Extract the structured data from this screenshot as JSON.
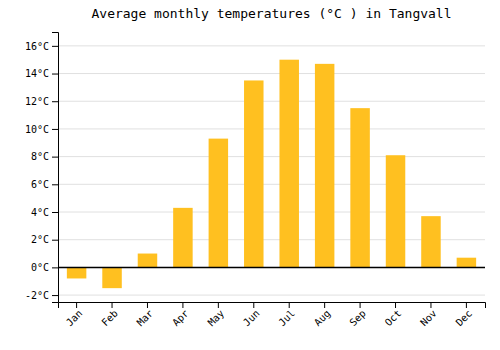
{
  "chart_data": {
    "type": "bar",
    "title": "Average monthly temperatures (°C ) in Tangvall",
    "categories": [
      "Jan",
      "Feb",
      "Mar",
      "Apr",
      "May",
      "Jun",
      "Jul",
      "Aug",
      "Sep",
      "Oct",
      "Nov",
      "Dec"
    ],
    "values": [
      -0.8,
      -1.5,
      1.0,
      4.3,
      9.3,
      13.5,
      15.0,
      14.7,
      11.5,
      8.1,
      3.7,
      0.7
    ],
    "color": "#FFC020",
    "ylim": [
      -2.5,
      17.0
    ],
    "yticks": [
      {
        "value": -2,
        "label": "-2°C"
      },
      {
        "value": 0,
        "label": "0°C"
      },
      {
        "value": 2,
        "label": "2°C"
      },
      {
        "value": 4,
        "label": "4°C"
      },
      {
        "value": 6,
        "label": "6°C"
      },
      {
        "value": 8,
        "label": "8°C"
      },
      {
        "value": 10,
        "label": "10°C"
      },
      {
        "value": 12,
        "label": "12°C"
      },
      {
        "value": 14,
        "label": "14°C"
      },
      {
        "value": 16,
        "label": "16°C"
      }
    ],
    "grid": true
  }
}
